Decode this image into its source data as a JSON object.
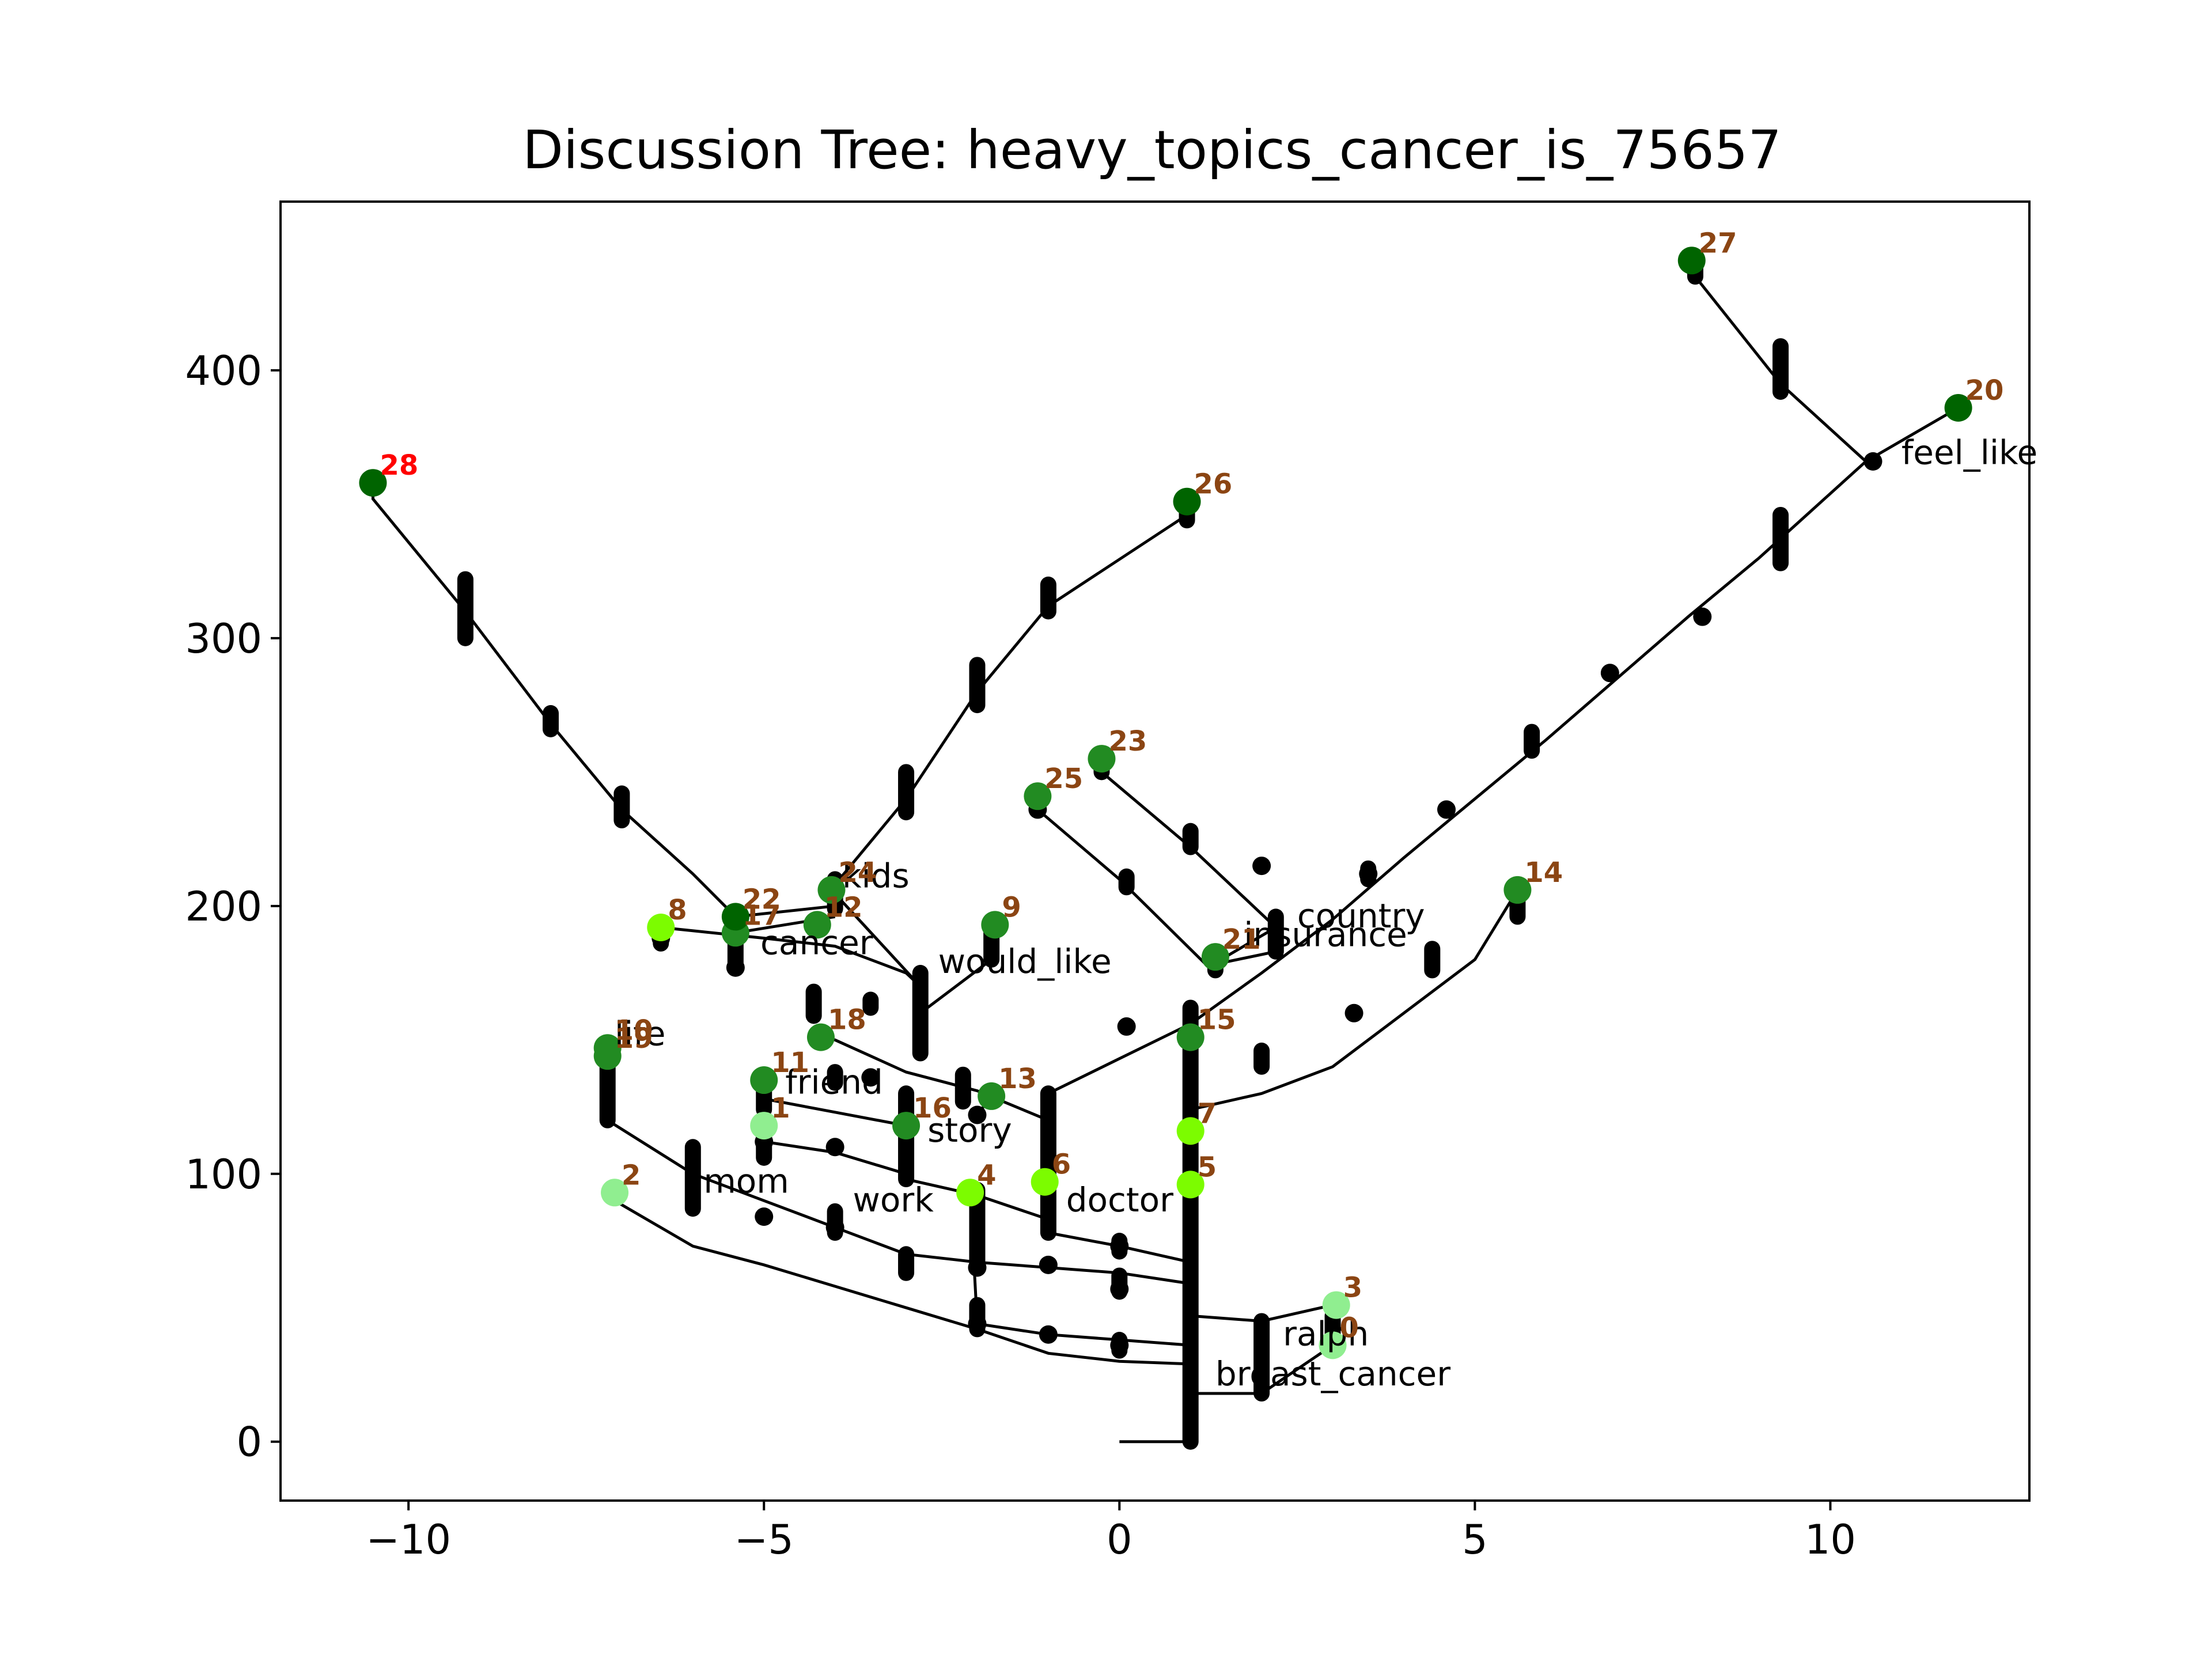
{
  "chart_data": {
    "type": "tree",
    "title": "Discussion Tree: heavy_topics_cancer_is_75657",
    "xlabel": "",
    "ylabel": "",
    "xlim": [
      -11.8,
      12.8
    ],
    "ylim": [
      -22,
      463
    ],
    "xticks": [
      {
        "v": -10,
        "label": "−10"
      },
      {
        "v": -5,
        "label": "−5"
      },
      {
        "v": 0,
        "label": "0"
      },
      {
        "v": 5,
        "label": "5"
      },
      {
        "v": 10,
        "label": "10"
      }
    ],
    "yticks": [
      {
        "v": 0,
        "label": "0"
      },
      {
        "v": 100,
        "label": "100"
      },
      {
        "v": 200,
        "label": "200"
      },
      {
        "v": 300,
        "label": "300"
      },
      {
        "v": 400,
        "label": "400"
      }
    ],
    "colors": {
      "edge": "#000000",
      "label_default": "#8b4513",
      "label_highlight": "#ff0000"
    },
    "nodes": [
      {
        "id": "0",
        "x": 3.0,
        "y": 36,
        "color": "#90ee90",
        "label_color": "#8b4513"
      },
      {
        "id": "1",
        "x": -5.0,
        "y": 118,
        "color": "#90ee90",
        "label_color": "#8b4513"
      },
      {
        "id": "2",
        "x": -7.1,
        "y": 93,
        "color": "#90ee90",
        "label_color": "#8b4513"
      },
      {
        "id": "3",
        "x": 3.05,
        "y": 51,
        "color": "#90ee90",
        "label_color": "#8b4513"
      },
      {
        "id": "4",
        "x": -2.1,
        "y": 93,
        "color": "#7cfc00",
        "label_color": "#8b4513"
      },
      {
        "id": "5",
        "x": 1.0,
        "y": 96,
        "color": "#7cfc00",
        "label_color": "#8b4513"
      },
      {
        "id": "6",
        "x": -1.05,
        "y": 97,
        "color": "#7cfc00",
        "label_color": "#8b4513"
      },
      {
        "id": "7",
        "x": 1.0,
        "y": 116,
        "color": "#7cfc00",
        "label_color": "#8b4513"
      },
      {
        "id": "8",
        "x": -6.45,
        "y": 192,
        "color": "#7cfc00",
        "label_color": "#8b4513"
      },
      {
        "id": "9",
        "x": -1.75,
        "y": 193,
        "color": "#228b22",
        "label_color": "#8b4513"
      },
      {
        "id": "10",
        "x": -7.2,
        "y": 147,
        "color": "#228b22",
        "label_color": "#8b4513"
      },
      {
        "id": "11",
        "x": -5.0,
        "y": 135,
        "color": "#228b22",
        "label_color": "#8b4513"
      },
      {
        "id": "12",
        "x": -4.25,
        "y": 193,
        "color": "#228b22",
        "label_color": "#8b4513"
      },
      {
        "id": "13",
        "x": -1.8,
        "y": 129,
        "color": "#228b22",
        "label_color": "#8b4513"
      },
      {
        "id": "14",
        "x": 5.6,
        "y": 206,
        "color": "#228b22",
        "label_color": "#8b4513"
      },
      {
        "id": "15",
        "x": 1.0,
        "y": 151,
        "color": "#228b22",
        "label_color": "#8b4513"
      },
      {
        "id": "16",
        "x": -3.0,
        "y": 118,
        "color": "#228b22",
        "label_color": "#8b4513"
      },
      {
        "id": "17",
        "x": -5.4,
        "y": 190,
        "color": "#228b22",
        "label_color": "#8b4513"
      },
      {
        "id": "18",
        "x": -4.2,
        "y": 151,
        "color": "#228b22",
        "label_color": "#8b4513"
      },
      {
        "id": "19",
        "x": -7.2,
        "y": 144,
        "color": "#228b22",
        "label_color": "#8b4513"
      },
      {
        "id": "20",
        "x": 11.8,
        "y": 386,
        "color": "#006400",
        "label_color": "#8b4513"
      },
      {
        "id": "21",
        "x": 1.35,
        "y": 181,
        "color": "#228b22",
        "label_color": "#8b4513"
      },
      {
        "id": "22",
        "x": -5.4,
        "y": 196,
        "color": "#006400",
        "label_color": "#8b4513"
      },
      {
        "id": "23",
        "x": -0.25,
        "y": 255,
        "color": "#228b22",
        "label_color": "#8b4513"
      },
      {
        "id": "24",
        "x": -4.05,
        "y": 206,
        "color": "#228b22",
        "label_color": "#8b4513"
      },
      {
        "id": "25",
        "x": -1.15,
        "y": 241,
        "color": "#228b22",
        "label_color": "#8b4513"
      },
      {
        "id": "26",
        "x": 0.95,
        "y": 351,
        "color": "#006400",
        "label_color": "#8b4513"
      },
      {
        "id": "27",
        "x": 8.05,
        "y": 441,
        "color": "#006400",
        "label_color": "#8b4513"
      },
      {
        "id": "28",
        "x": -10.5,
        "y": 358,
        "color": "#006400",
        "label_color": "#ff0000"
      }
    ],
    "topics": [
      {
        "text": "feel_like",
        "x": 11.0,
        "y": 365
      },
      {
        "text": "kids",
        "x": -3.9,
        "y": 207
      },
      {
        "text": "country",
        "x": 2.5,
        "y": 192
      },
      {
        "text": "insurance",
        "x": 1.75,
        "y": 185
      },
      {
        "text": "cancer",
        "x": -5.05,
        "y": 182
      },
      {
        "text": "would_like",
        "x": -2.55,
        "y": 175
      },
      {
        "text": "life",
        "x": -7.1,
        "y": 148
      },
      {
        "text": "friend",
        "x": -4.7,
        "y": 130
      },
      {
        "text": "story",
        "x": -2.7,
        "y": 112
      },
      {
        "text": "mom",
        "x": -5.85,
        "y": 93
      },
      {
        "text": "work",
        "x": -3.75,
        "y": 86
      },
      {
        "text": "doctor",
        "x": -0.75,
        "y": 86
      },
      {
        "text": "ralph",
        "x": 2.3,
        "y": 36
      },
      {
        "text": "breast_cancer",
        "x": 1.35,
        "y": 21
      }
    ]
  }
}
